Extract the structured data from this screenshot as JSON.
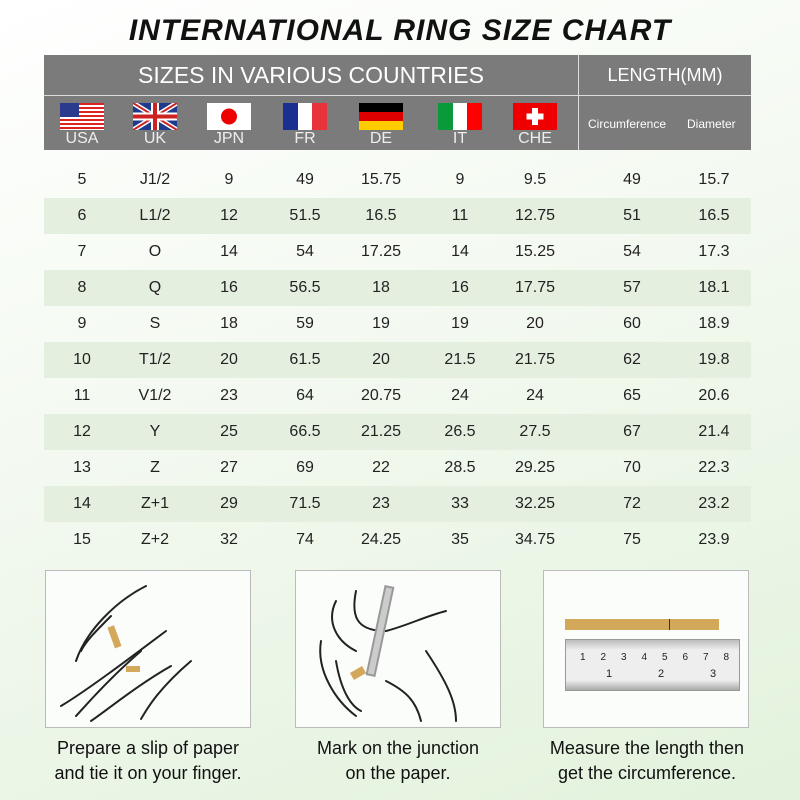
{
  "title": "INTERNATIONAL RING SIZE CHART",
  "header": {
    "sizes_label": "SIZES IN VARIOUS COUNTRIES",
    "length_label": "LENGTH(MM)",
    "countries": [
      {
        "code": "USA",
        "flag": "us-flag"
      },
      {
        "code": "UK",
        "flag": "uk-flag"
      },
      {
        "code": "JPN",
        "flag": "japan-flag"
      },
      {
        "code": "FR",
        "flag": "france-flag"
      },
      {
        "code": "DE",
        "flag": "germany-flag"
      },
      {
        "code": "IT",
        "flag": "italy-flag"
      },
      {
        "code": "CHE",
        "flag": "switzerland-flag"
      }
    ],
    "length_columns": [
      "Circumference",
      "Diameter"
    ]
  },
  "rows": [
    [
      "5",
      "J1/2",
      "9",
      "49",
      "15.75",
      "9",
      "9.5",
      "49",
      "15.7"
    ],
    [
      "6",
      "L1/2",
      "12",
      "51.5",
      "16.5",
      "11",
      "12.75",
      "51",
      "16.5"
    ],
    [
      "7",
      "O",
      "14",
      "54",
      "17.25",
      "14",
      "15.25",
      "54",
      "17.3"
    ],
    [
      "8",
      "Q",
      "16",
      "56.5",
      "18",
      "16",
      "17.75",
      "57",
      "18.1"
    ],
    [
      "9",
      "S",
      "18",
      "59",
      "19",
      "19",
      "20",
      "60",
      "18.9"
    ],
    [
      "10",
      "T1/2",
      "20",
      "61.5",
      "20",
      "21.5",
      "21.75",
      "62",
      "19.8"
    ],
    [
      "11",
      "V1/2",
      "23",
      "64",
      "20.75",
      "24",
      "24",
      "65",
      "20.6"
    ],
    [
      "12",
      "Y",
      "25",
      "66.5",
      "21.25",
      "26.5",
      "27.5",
      "67",
      "21.4"
    ],
    [
      "13",
      "Z",
      "27",
      "69",
      "22",
      "28.5",
      "29.25",
      "70",
      "22.3"
    ],
    [
      "14",
      "Z+1",
      "29",
      "71.5",
      "23",
      "33",
      "32.25",
      "72",
      "23.2"
    ],
    [
      "15",
      "Z+2",
      "32",
      "74",
      "24.25",
      "35",
      "34.75",
      "75",
      "23.9"
    ]
  ],
  "colors": {
    "header_bg": "#7b7b7b",
    "alt_row": "#e4efe0",
    "paper_strip": "#d4a85a"
  },
  "steps": [
    {
      "line1": "Prepare a slip of paper",
      "line2": "and tie it on your finger."
    },
    {
      "line1": "Mark on the junction",
      "line2": "on the paper."
    },
    {
      "line1": "Measure the length then",
      "line2": "get the circumference."
    }
  ],
  "ruler": {
    "top_ticks": [
      "1",
      "2",
      "3",
      "4",
      "5",
      "6",
      "7",
      "8"
    ],
    "bottom_ticks": [
      "1",
      "2",
      "3"
    ]
  }
}
